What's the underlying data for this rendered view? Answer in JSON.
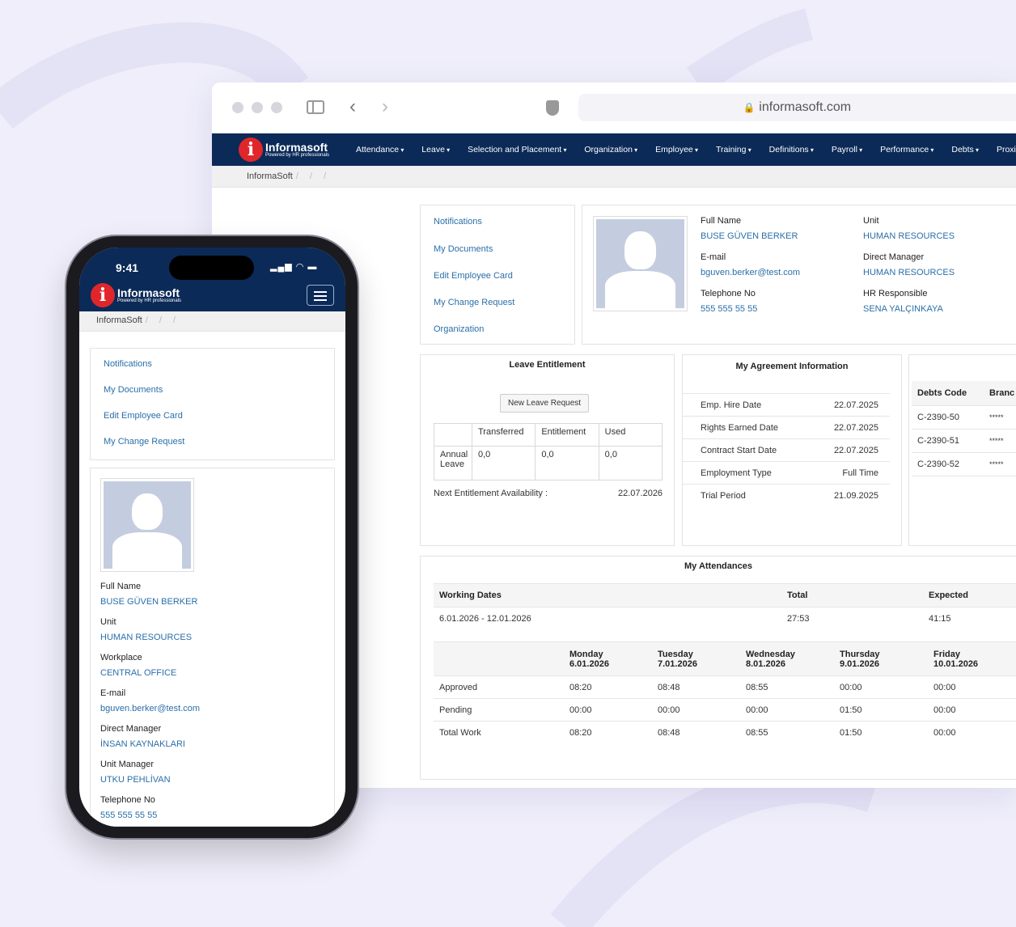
{
  "browser": {
    "url": "informasoft.com"
  },
  "brand": {
    "name": "Informasoft",
    "tagline": "Powered by HR professionals",
    "logo_color": "#e0262b",
    "nav_color": "#0b2a58"
  },
  "nav": [
    "Attendance",
    "Leave",
    "Selection and Placement",
    "Organization",
    "Employee",
    "Training",
    "Definitions",
    "Payroll",
    "Performance",
    "Debts",
    "Proxi"
  ],
  "breadcrumb": "InformaSoft",
  "quick_links": [
    "Notifications",
    "My Documents",
    "Edit Employee Card",
    "My Change Request",
    "Organization"
  ],
  "profile": {
    "fields": [
      {
        "label": "Full Name",
        "value": "BUSE GÜVEN BERKER"
      },
      {
        "label": "Unit",
        "value": "HUMAN RESOURCES"
      },
      {
        "label": "E-mail",
        "value": "bguven.berker@test.com"
      },
      {
        "label": "Direct Manager",
        "value": "HUMAN RESOURCES"
      },
      {
        "label": "Telephone No",
        "value": "555 555 55 55"
      },
      {
        "label": "HR Responsible",
        "value": "SENA YALÇINKAYA"
      }
    ]
  },
  "leave": {
    "title": "Leave Entitlement",
    "button": "New Leave Request",
    "headers": [
      "",
      "Transferred",
      "Entitlement",
      "Used"
    ],
    "row": [
      "Annual Leave",
      "0,0",
      "0,0",
      "0,0"
    ],
    "next_label": "Next Entitlement Availability :",
    "next_value": "22.07.2026"
  },
  "agreement": {
    "title": "My Agreement Information",
    "rows": [
      [
        "Emp. Hire Date",
        "22.07.2025"
      ],
      [
        "Rights Earned Date",
        "22.07.2025"
      ],
      [
        "Contract Start Date",
        "22.07.2025"
      ],
      [
        "Employment Type",
        "Full Time"
      ],
      [
        "Trial Period",
        "21.09.2025"
      ]
    ]
  },
  "debts": {
    "headers": [
      "Debts Code",
      "Branc"
    ],
    "rows": [
      [
        "C-2390-50",
        "*****"
      ],
      [
        "C-2390-51",
        "*****"
      ],
      [
        "C-2390-52",
        "*****"
      ]
    ]
  },
  "attendances": {
    "title": "My Attendances",
    "summary_headers": [
      "Working Dates",
      "Total",
      "Expected"
    ],
    "summary_row": [
      "6.01.2026 - 12.01.2026",
      "27:53",
      "41:15"
    ],
    "day_headers": [
      [
        "",
        ""
      ],
      [
        "Monday",
        "6.01.2026"
      ],
      [
        "Tuesday",
        "7.01.2026"
      ],
      [
        "Wednesday",
        "8.01.2026"
      ],
      [
        "Thursday",
        "9.01.2026"
      ],
      [
        "Friday",
        "10.01.2026"
      ]
    ],
    "rows": [
      [
        "Approved",
        "08:20",
        "08:48",
        "08:55",
        "00:00",
        "00:00"
      ],
      [
        "Pending",
        "00:00",
        "00:00",
        "00:00",
        "01:50",
        "00:00"
      ],
      [
        "Total Work",
        "08:20",
        "08:48",
        "08:55",
        "01:50",
        "00:00"
      ]
    ]
  },
  "phone": {
    "time": "9:41",
    "links": [
      "Notifications",
      "My Documents",
      "Edit Employee Card",
      "My Change Request"
    ],
    "fields": [
      [
        "Full Name",
        "BUSE GÜVEN BERKER"
      ],
      [
        "Unit",
        "HUMAN RESOURCES"
      ],
      [
        "Workplace",
        "CENTRAL OFFICE"
      ],
      [
        "E-mail",
        "bguven.berker@test.com"
      ],
      [
        "Direct Manager",
        "İNSAN KAYNAKLARI"
      ],
      [
        "Unit Manager",
        "UTKU PEHLİVAN"
      ],
      [
        "Telephone No",
        "555 555 55 55"
      ]
    ]
  }
}
